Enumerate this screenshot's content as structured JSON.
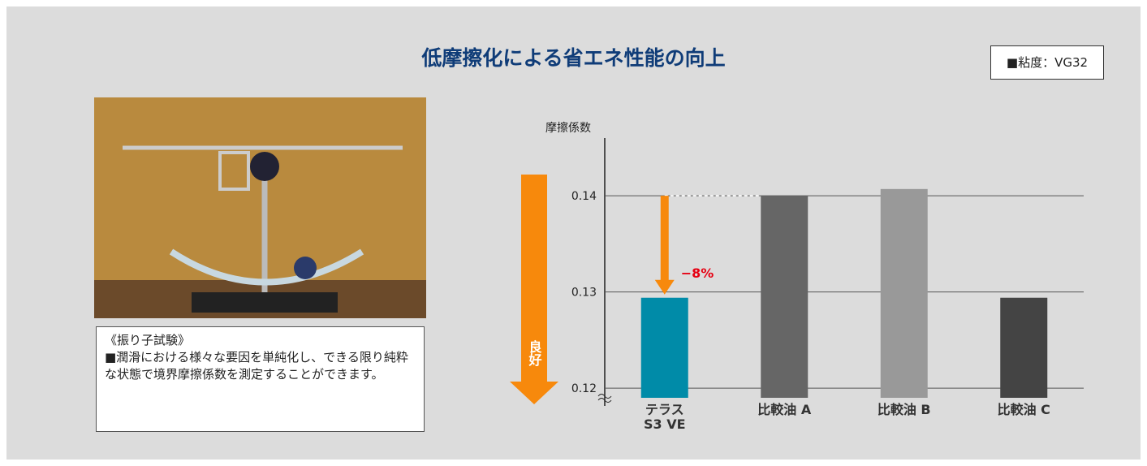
{
  "header": {
    "title": "低摩擦化による省エネ性能の向上",
    "note": "■粘度：VG32"
  },
  "caption": {
    "title": "《振り子試験》",
    "text": "■潤滑における様々な要因を単純化し、できる限り純粋な状態で境界摩擦係数を測定することができます。"
  },
  "chart_data": {
    "type": "bar",
    "y_label": "摩擦係数",
    "categories": [
      "テラス\nS3 VE",
      "比較油 A",
      "比較油 B",
      "比較油 C"
    ],
    "values": [
      0.1294,
      0.14,
      0.1407,
      0.1294
    ],
    "colors": [
      "#008ba8",
      "#666666",
      "#999999",
      "#444444"
    ],
    "ylim": [
      0.119,
      0.146
    ],
    "yticks": [
      0.12,
      0.13,
      0.14
    ],
    "grid": true,
    "annotations": [
      "−8%",
      "良好"
    ]
  }
}
